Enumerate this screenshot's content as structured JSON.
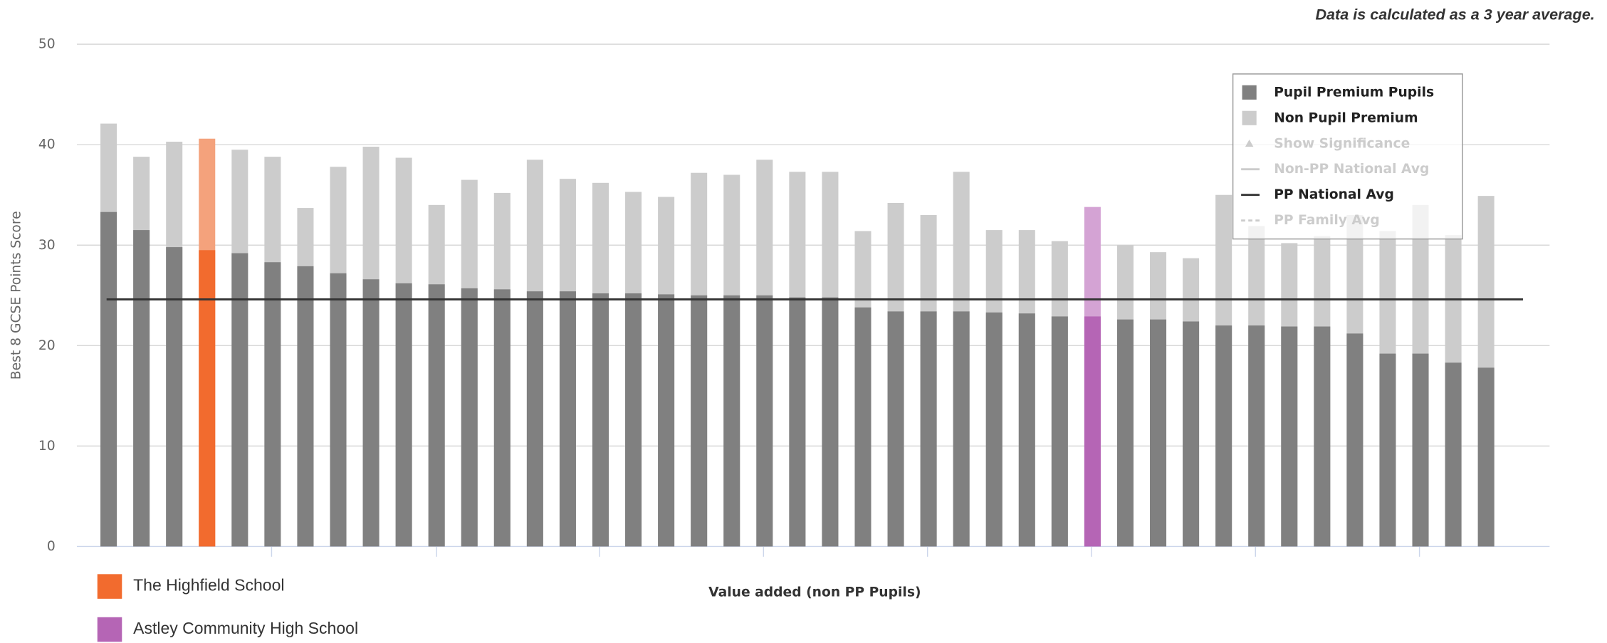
{
  "chart_data": {
    "type": "bar",
    "note": "Data is calculated as a 3 year average.",
    "y_label": "Best 8 GCSE Points Score",
    "x_label": "Value added (non PP Pupils)",
    "categories": [
      null,
      null,
      null,
      null,
      null,
      null,
      null,
      null,
      null,
      null,
      null,
      null,
      null,
      null,
      null,
      null,
      null,
      null,
      null,
      null,
      null,
      null,
      null,
      null,
      null,
      null,
      null,
      null,
      null,
      null,
      null,
      null,
      null,
      null,
      null,
      null,
      null,
      null,
      null,
      null,
      null,
      null,
      null
    ],
    "series": [
      {
        "name": "Non Pupil Premium",
        "color": "#cccccc",
        "values": [
          42.1,
          38.8,
          40.3,
          40.6,
          39.5,
          38.8,
          33.7,
          37.8,
          39.8,
          38.7,
          34.0,
          36.5,
          35.2,
          38.5,
          36.6,
          36.2,
          35.3,
          34.8,
          37.2,
          37.0,
          38.5,
          37.3,
          37.3,
          31.4,
          34.2,
          33.0,
          37.3,
          31.5,
          31.5,
          30.4,
          33.8,
          30.0,
          29.3,
          28.7,
          35.0,
          31.9,
          30.2,
          30.9,
          33.0,
          31.4,
          34.0,
          31.0,
          34.9
        ]
      },
      {
        "name": "Pupil Premium Pupils",
        "color": "#808080",
        "values": [
          33.3,
          31.5,
          29.8,
          29.5,
          29.2,
          28.3,
          27.9,
          27.2,
          26.6,
          26.2,
          26.1,
          25.7,
          25.6,
          25.4,
          25.4,
          25.2,
          25.2,
          25.1,
          25.0,
          25.0,
          25.0,
          24.8,
          24.8,
          23.8,
          23.4,
          23.4,
          23.4,
          23.3,
          23.2,
          22.9,
          22.9,
          22.6,
          22.6,
          22.4,
          22.0,
          22.0,
          21.9,
          21.9,
          21.2,
          19.2,
          19.2,
          18.3,
          17.8
        ]
      }
    ],
    "highlights": [
      {
        "name": "The Highfield School",
        "index": 3,
        "color": "#f26b2e",
        "light_color": "#f4a27c"
      },
      {
        "name": "Astley Community High School",
        "index": 30,
        "color": "#b565b5",
        "light_color": "#d4a3d4"
      }
    ],
    "lines": [
      {
        "name": "PP National Avg",
        "value": 24.6,
        "color": "#333333"
      }
    ],
    "legend_extra": [
      {
        "name": "Show Significance",
        "symbol": "triangle",
        "enabled": false
      },
      {
        "name": "Non-PP National Avg",
        "symbol": "line",
        "enabled": false
      },
      {
        "name": "PP Family Avg",
        "symbol": "dash",
        "enabled": false
      }
    ],
    "ylim": [
      0,
      50
    ],
    "yticks": [
      0,
      10,
      20,
      30,
      40,
      50
    ],
    "grid": true
  }
}
